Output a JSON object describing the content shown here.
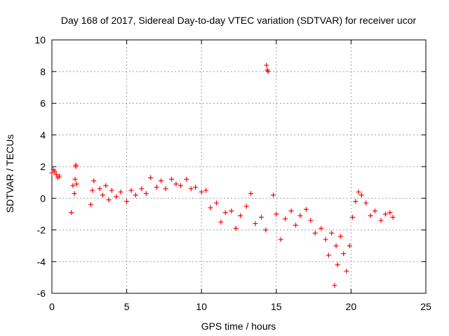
{
  "chart_data": {
    "type": "scatter",
    "title": "Day 168 of 2017, Sidereal Day-to-day VTEC variation (SDTVAR) for receiver ucor",
    "xlabel": "GPS time / hours",
    "ylabel": "SDTVAR / TECUs",
    "xlim": [
      0,
      25
    ],
    "ylim": [
      -6,
      10
    ],
    "xticks": [
      0,
      5,
      10,
      15,
      20,
      25
    ],
    "yticks": [
      -6,
      -4,
      -2,
      0,
      2,
      4,
      6,
      8,
      10
    ],
    "grid": true,
    "marker": "+",
    "color": "#ff0000",
    "series": [
      {
        "name": "SDTVAR",
        "x": [
          0.0,
          0.1,
          0.2,
          0.3,
          0.4,
          0.5,
          1.3,
          1.4,
          1.5,
          1.55,
          1.6,
          1.6,
          1.65,
          2.6,
          2.7,
          2.8,
          3.2,
          3.4,
          3.6,
          3.8,
          4.0,
          4.3,
          4.6,
          5.0,
          5.3,
          5.6,
          6.0,
          6.3,
          6.6,
          7.0,
          7.3,
          7.6,
          8.0,
          8.3,
          8.6,
          9.0,
          9.3,
          9.6,
          10.0,
          10.3,
          10.6,
          11.0,
          11.3,
          11.6,
          12.0,
          12.3,
          12.6,
          13.0,
          13.3,
          13.6,
          14.0,
          14.3,
          14.35,
          14.4,
          14.45,
          14.8,
          15.0,
          15.3,
          15.6,
          16.0,
          16.3,
          16.6,
          17.0,
          17.3,
          17.6,
          18.0,
          18.3,
          18.5,
          18.7,
          18.9,
          19.0,
          19.1,
          19.3,
          19.5,
          19.7,
          19.9,
          20.1,
          20.3,
          20.5,
          20.7,
          21.0,
          21.3,
          21.6,
          22.0,
          22.3,
          22.6,
          22.8
        ],
        "y": [
          1.6,
          1.8,
          1.7,
          1.5,
          1.3,
          1.4,
          -0.9,
          0.8,
          0.3,
          1.2,
          2.0,
          2.1,
          0.9,
          -0.4,
          0.5,
          1.1,
          0.6,
          0.2,
          0.8,
          -0.1,
          0.5,
          0.1,
          0.4,
          -0.2,
          0.5,
          0.2,
          0.6,
          0.3,
          1.3,
          0.7,
          1.1,
          0.6,
          1.2,
          0.9,
          0.8,
          1.2,
          0.6,
          0.7,
          0.4,
          0.5,
          -0.6,
          -0.3,
          -1.5,
          -0.9,
          -0.8,
          -1.9,
          -1.1,
          -0.5,
          0.3,
          -1.6,
          -1.2,
          -2.0,
          8.4,
          8.1,
          8.0,
          0.2,
          -1.0,
          -2.6,
          -1.3,
          -0.8,
          -1.7,
          -1.1,
          -0.7,
          -1.4,
          -2.2,
          -1.9,
          -2.6,
          -3.6,
          -2.2,
          -5.5,
          -3.0,
          -4.2,
          -2.4,
          -3.5,
          -4.6,
          -3.0,
          -1.2,
          -0.2,
          0.4,
          0.2,
          -0.3,
          -1.1,
          -0.8,
          -1.4,
          -1.0,
          -0.9,
          -1.2
        ]
      }
    ]
  }
}
